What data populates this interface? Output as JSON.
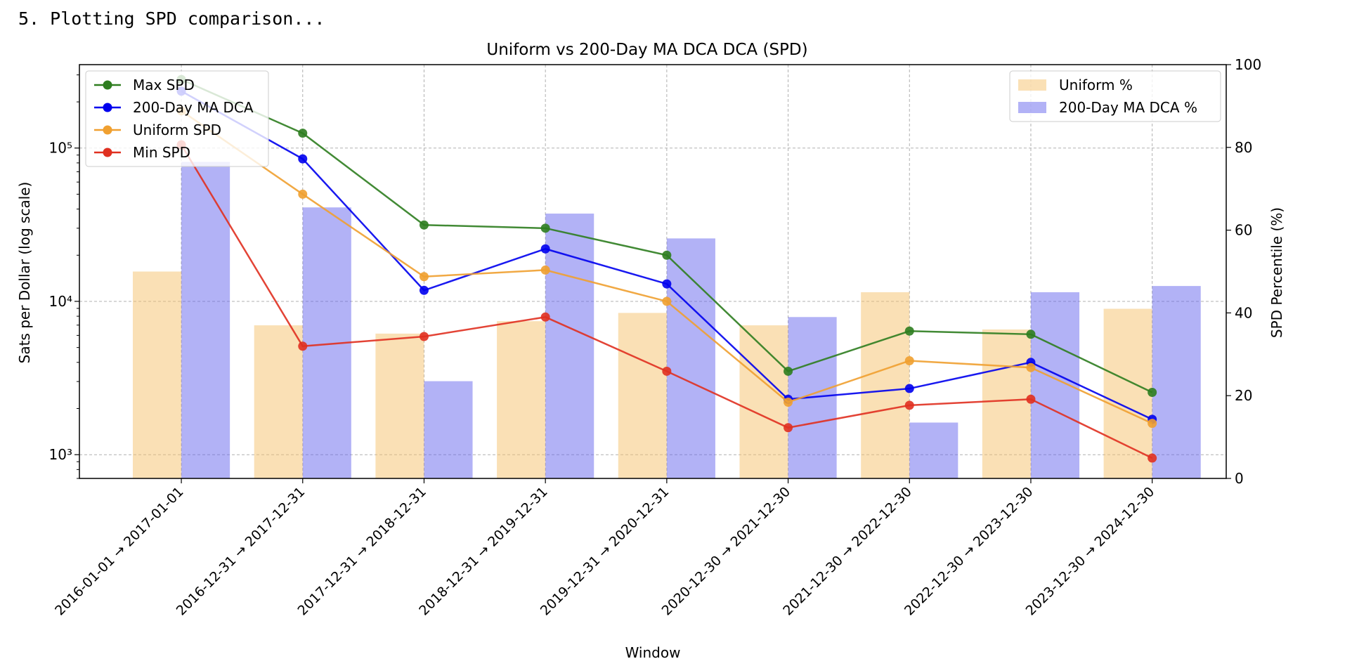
{
  "console_text": "5. Plotting SPD comparison...",
  "chart_data": {
    "type": "bar+line",
    "title": "Uniform vs 200-Day MA DCA DCA (SPD)",
    "xlabel": "Window",
    "ylabel_left": "Sats per Dollar (log scale)",
    "ylabel_right": "SPD Percentile (%)",
    "yscale_left": "log",
    "ylim_left": [
      700,
      350000
    ],
    "ylim_right": [
      0,
      100
    ],
    "left_ticks": [
      {
        "value": 1000,
        "label": "10³"
      },
      {
        "value": 10000,
        "label": "10⁴"
      },
      {
        "value": 100000,
        "label": "10⁵"
      }
    ],
    "right_ticks": [
      0,
      20,
      40,
      60,
      80,
      100
    ],
    "grid": true,
    "categories": [
      "2016-01-01 → 2017-01-01",
      "2016-12-31 → 2017-12-31",
      "2017-12-31 → 2018-12-31",
      "2018-12-31 → 2019-12-31",
      "2019-12-31 → 2020-12-31",
      "2020-12-30 → 2021-12-30",
      "2021-12-30 → 2022-12-30",
      "2022-12-30 → 2023-12-30",
      "2023-12-30 → 2024-12-30"
    ],
    "line_series": [
      {
        "name": "Max SPD",
        "color": "#2e7d1f",
        "values": [
          280000,
          125000,
          31500,
          30000,
          20000,
          3500,
          6400,
          6100,
          2550
        ]
      },
      {
        "name": "200-Day MA DCA",
        "color": "#0000ee",
        "values": [
          235000,
          85000,
          11800,
          22000,
          13000,
          2300,
          2700,
          4000,
          1700
        ]
      },
      {
        "name": "Uniform SPD",
        "color": "#f0a030",
        "values": [
          175000,
          50000,
          14500,
          16000,
          10000,
          2200,
          4100,
          3700,
          1600
        ]
      },
      {
        "name": "Min SPD",
        "color": "#e03020",
        "values": [
          105000,
          5100,
          5900,
          7900,
          3500,
          1500,
          2100,
          2300,
          950
        ]
      }
    ],
    "bar_series": [
      {
        "name": "Uniform %",
        "color": "#f5c16c",
        "opacity": 0.5,
        "values": [
          50,
          37,
          35,
          38,
          40,
          37,
          45,
          36,
          41
        ]
      },
      {
        "name": "200-Day MA DCA %",
        "color": "#6666ee",
        "opacity": 0.5,
        "values": [
          76.5,
          65.5,
          23.5,
          64,
          58,
          39,
          13.5,
          45,
          46.5
        ]
      }
    ],
    "legend_left_position": "upper-left",
    "legend_right_position": "upper-right"
  }
}
